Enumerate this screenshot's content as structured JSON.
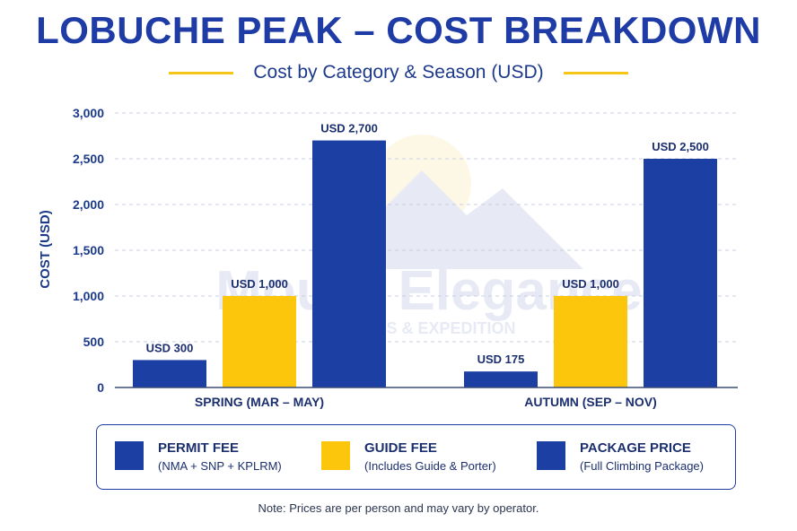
{
  "header": {
    "title": "LOBUCHE PEAK – COST BREAKDOWN",
    "subtitle": "Cost by Category & Season (USD)"
  },
  "watermark": {
    "brand": "Mount Elegance",
    "tagline": "TREKS & EXPEDITION"
  },
  "chart_data": {
    "type": "bar",
    "categories": [
      "SPRING (MAR – MAY)",
      "AUTUMN (SEP – NOV)"
    ],
    "series": [
      {
        "name": "PERMIT FEE",
        "values": [
          300,
          175
        ],
        "labels": [
          "USD 300",
          "USD 175"
        ],
        "color": "#1b3fa3"
      },
      {
        "name": "GUIDE FEE",
        "values": [
          1000,
          1000
        ],
        "labels": [
          "USD 1,000",
          "USD 1,000"
        ],
        "color": "#fbc60c"
      },
      {
        "name": "PACKAGE PRICE",
        "values": [
          2700,
          2500
        ],
        "labels": [
          "USD 2,700",
          "USD 2,500"
        ],
        "color": "#1b3fa3"
      }
    ],
    "ylabel": "COST (USD)",
    "ylim": [
      0,
      3000
    ],
    "yticks": [
      0,
      500,
      1000,
      1500,
      2000,
      2500,
      3000
    ],
    "ytick_labels": [
      "0",
      "500",
      "1,000",
      "1,500",
      "2,000",
      "2,500",
      "3,000"
    ],
    "grid": true
  },
  "legend": {
    "items": [
      {
        "name": "PERMIT FEE",
        "desc": "(NMA + SNP + KPLRM)",
        "color": "#1b3fa3"
      },
      {
        "name": "GUIDE FEE",
        "desc": "(Includes Guide & Porter)",
        "color": "#fbc60c"
      },
      {
        "name": "PACKAGE PRICE",
        "desc": "(Full Climbing Package)",
        "color": "#1b3fa3"
      }
    ]
  },
  "note": "Note: Prices are per person and may vary by operator."
}
